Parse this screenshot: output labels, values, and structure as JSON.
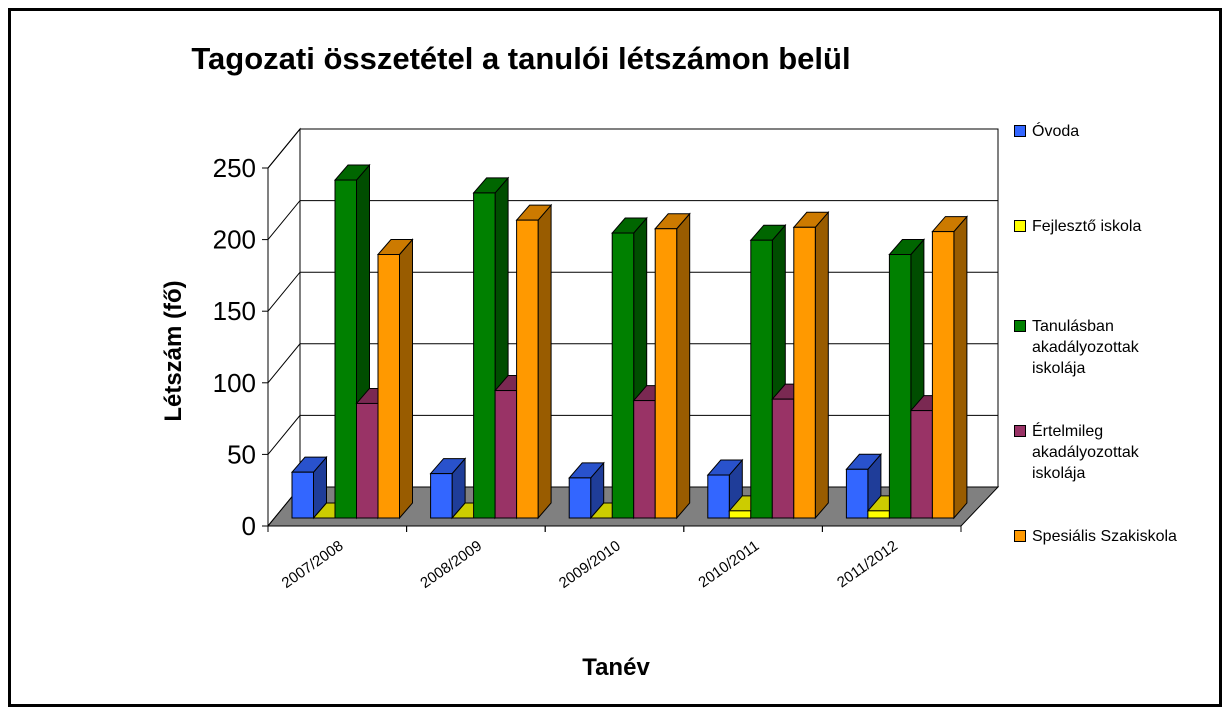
{
  "chart_data": {
    "type": "bar3d",
    "title": "Tagozati összetétel a tanulói létszámon belül",
    "x_label": "Tanév",
    "y_label": "Létszám (fő)",
    "categories": [
      "2007/2008",
      "2008/2009",
      "2009/2010",
      "2010/2011",
      "2011/2012"
    ],
    "series": [
      {
        "name": "Óvoda",
        "color": "#3366ff",
        "values": [
          32,
          31,
          28,
          30,
          34
        ]
      },
      {
        "name": "Fejlesztő iskola",
        "color": "#ffff00",
        "values": [
          0,
          0,
          0,
          5,
          5
        ]
      },
      {
        "name": "Tanulásban akadályozottak iskolája",
        "color": "#008000",
        "values": [
          236,
          227,
          199,
          194,
          184
        ]
      },
      {
        "name": "Értelmileg akadályozottak iskolája",
        "color": "#993366",
        "values": [
          80,
          89,
          82,
          83,
          75
        ]
      },
      {
        "name": "Spesiális Szakiskola",
        "color": "#ff9900",
        "values": [
          184,
          208,
          202,
          203,
          200
        ]
      }
    ],
    "ylim": [
      0,
      250
    ],
    "yticks": [
      0,
      50,
      100,
      150,
      200,
      250
    ],
    "grid": true
  }
}
